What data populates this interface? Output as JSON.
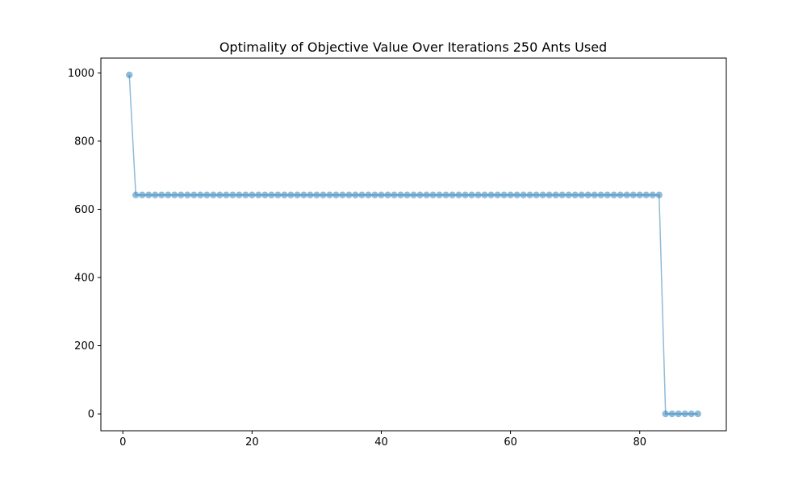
{
  "chart_data": {
    "type": "line",
    "title": "Optimality of Objective Value Over Iterations 250 Ants Used",
    "xlabel": "",
    "ylabel": "",
    "xlim": [
      -3.4,
      93.4
    ],
    "ylim": [
      -49.5,
      1043.5
    ],
    "xticks": [
      0,
      20,
      40,
      60,
      80
    ],
    "yticks": [
      0,
      200,
      400,
      600,
      800,
      1000
    ],
    "grid": false,
    "marker": "circle",
    "line_color": "#1f77b4",
    "series": [
      {
        "x": [
          1,
          2,
          3,
          4,
          5,
          6,
          7,
          8,
          9,
          10,
          11,
          12,
          13,
          14,
          15,
          16,
          17,
          18,
          19,
          20,
          21,
          22,
          23,
          24,
          25,
          26,
          27,
          28,
          29,
          30,
          31,
          32,
          33,
          34,
          35,
          36,
          37,
          38,
          39,
          40,
          41,
          42,
          43,
          44,
          45,
          46,
          47,
          48,
          49,
          50,
          51,
          52,
          53,
          54,
          55,
          56,
          57,
          58,
          59,
          60,
          61,
          62,
          63,
          64,
          65,
          66,
          67,
          68,
          69,
          70,
          71,
          72,
          73,
          74,
          75,
          76,
          77,
          78,
          79,
          80,
          81,
          82,
          83,
          84,
          85,
          86,
          87,
          88,
          89
        ],
        "values": [
          994,
          642,
          642,
          642,
          642,
          642,
          642,
          642,
          642,
          642,
          642,
          642,
          642,
          642,
          642,
          642,
          642,
          642,
          642,
          642,
          642,
          642,
          642,
          642,
          642,
          642,
          642,
          642,
          642,
          642,
          642,
          642,
          642,
          642,
          642,
          642,
          642,
          642,
          642,
          642,
          642,
          642,
          642,
          642,
          642,
          642,
          642,
          642,
          642,
          642,
          642,
          642,
          642,
          642,
          642,
          642,
          642,
          642,
          642,
          642,
          642,
          642,
          642,
          642,
          642,
          642,
          642,
          642,
          642,
          642,
          642,
          642,
          642,
          642,
          642,
          642,
          642,
          642,
          642,
          642,
          642,
          642,
          642,
          0,
          0,
          0,
          0,
          0,
          0
        ]
      }
    ]
  }
}
